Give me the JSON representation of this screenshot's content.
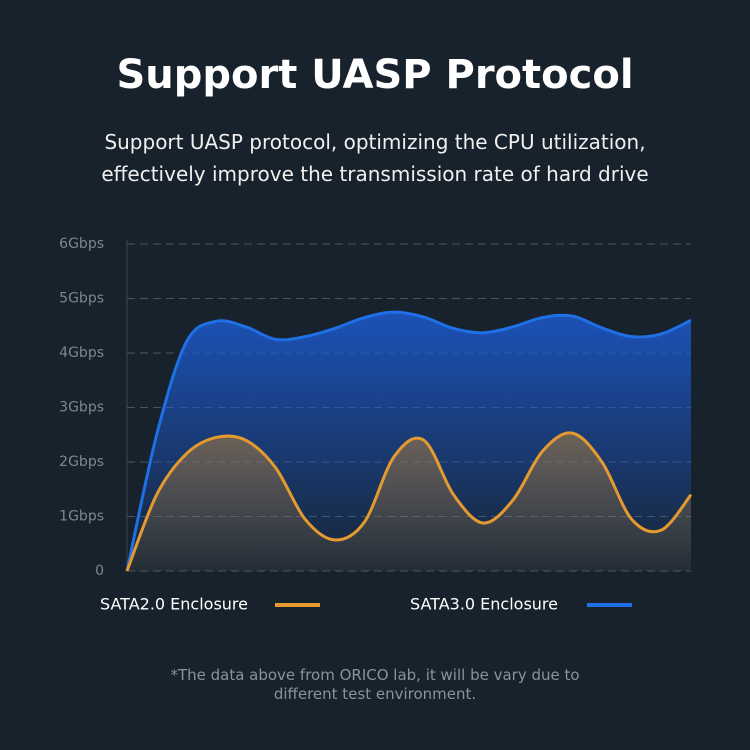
{
  "chart_data": {
    "type": "area",
    "title": "Support UASP Protocol",
    "subtitle": "Support UASP protocol, optimizing the CPU utilization, effectively improve the transmission rate of hard drive",
    "footnote": "*The data above from ORICO lab, it will be vary due to different test environment.",
    "categories": [
      null,
      null,
      null,
      null,
      null,
      null,
      null,
      null,
      null,
      null,
      null,
      null,
      null,
      null,
      null,
      null,
      null,
      null,
      null,
      null
    ],
    "series": [
      {
        "name": "SATA2.0 Enclosure",
        "color": "#e59a2f",
        "values": [
          0,
          1.4,
          2.15,
          2.45,
          2.4,
          1.9,
          0.95,
          0.57,
          0.9,
          2.1,
          2.4,
          1.4,
          0.88,
          1.3,
          2.2,
          2.53,
          2.0,
          0.95,
          0.75,
          1.4
        ]
      },
      {
        "name": "SATA3.0 Enclosure",
        "color": "#1f6fe5",
        "values": [
          0,
          2.5,
          4.2,
          4.58,
          4.48,
          4.25,
          4.3,
          4.45,
          4.65,
          4.75,
          4.66,
          4.45,
          4.37,
          4.48,
          4.65,
          4.68,
          4.46,
          4.3,
          4.35,
          4.6
        ]
      }
    ],
    "ylim": [
      0,
      6
    ],
    "yticks": [
      0,
      {
        "value": 1,
        "label": "1Gbps"
      },
      {
        "value": 2,
        "label": "2Gbps"
      },
      {
        "value": 3,
        "label": "3Gbps"
      },
      {
        "value": 4,
        "label": "4Gbps"
      },
      {
        "value": 5,
        "label": "5Gbps"
      },
      {
        "value": 6,
        "label": "6Gbps"
      }
    ],
    "grid": true
  }
}
